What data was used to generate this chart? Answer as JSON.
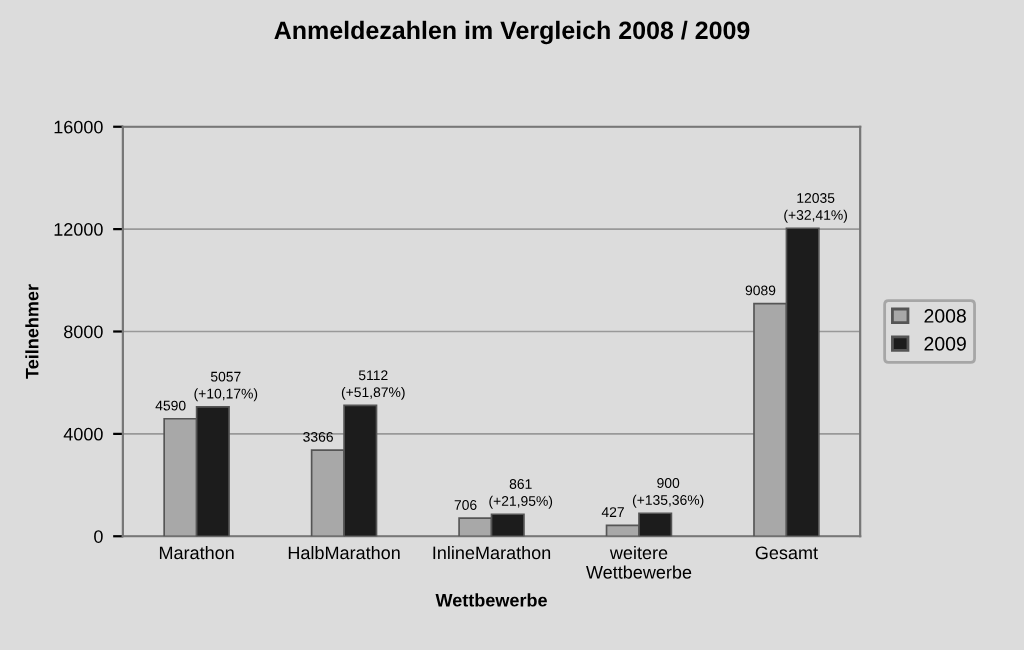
{
  "chart_data": {
    "type": "bar",
    "title": "Anmeldezahlen im Vergleich 2008 / 2009",
    "xlabel": "Wettbewerbe",
    "ylabel": "Teilnehmer",
    "categories": [
      "Marathon",
      "HalbMarathon",
      "InlineMarathon",
      "weitere\nWettbewerbe",
      "Gesamt"
    ],
    "series": [
      {
        "name": "2008",
        "color": "#a8a8a8",
        "values": [
          4590,
          3366,
          706,
          427,
          9089
        ],
        "value_labels": [
          "4590",
          "3366",
          "706",
          "427",
          "9089"
        ]
      },
      {
        "name": "2009",
        "color": "#1c1c1c",
        "values": [
          5057,
          5112,
          861,
          900,
          12035
        ],
        "value_labels": [
          "5057\n(+10,17%)",
          "5112\n(+51,87%)",
          "861\n(+21,95%)",
          "900\n(+135,36%)",
          "12035\n(+32,41%)"
        ]
      }
    ],
    "ylim": [
      0,
      16000
    ],
    "yticks": [
      0,
      4000,
      8000,
      12000,
      16000
    ],
    "grid": "y",
    "legend": "right"
  }
}
